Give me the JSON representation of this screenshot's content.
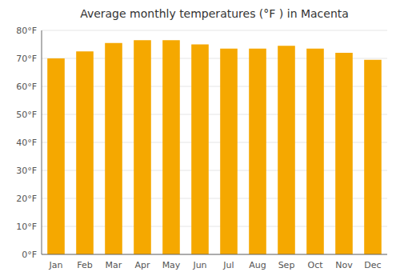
{
  "chart_data": {
    "type": "bar",
    "title": "Average monthly temperatures (°F ) in Macenta",
    "categories": [
      "Jan",
      "Feb",
      "Mar",
      "Apr",
      "May",
      "Jun",
      "Jul",
      "Aug",
      "Sep",
      "Oct",
      "Nov",
      "Dec"
    ],
    "values": [
      70.0,
      72.5,
      75.5,
      76.5,
      76.5,
      75.0,
      73.5,
      73.5,
      74.5,
      73.5,
      72.0,
      69.5
    ],
    "color": "#F5A800",
    "ylim": [
      0,
      80
    ],
    "yticks": [
      {
        "value": 0,
        "label": "0°F"
      },
      {
        "value": 10,
        "label": "10°F"
      },
      {
        "value": 20,
        "label": "20°F"
      },
      {
        "value": 30,
        "label": "30°F"
      },
      {
        "value": 40,
        "label": "40°F"
      },
      {
        "value": 50,
        "label": "50°F"
      },
      {
        "value": 60,
        "label": "60°F"
      },
      {
        "value": 70,
        "label": "70°F"
      },
      {
        "value": 80,
        "label": "80°F"
      }
    ],
    "grid": true
  }
}
